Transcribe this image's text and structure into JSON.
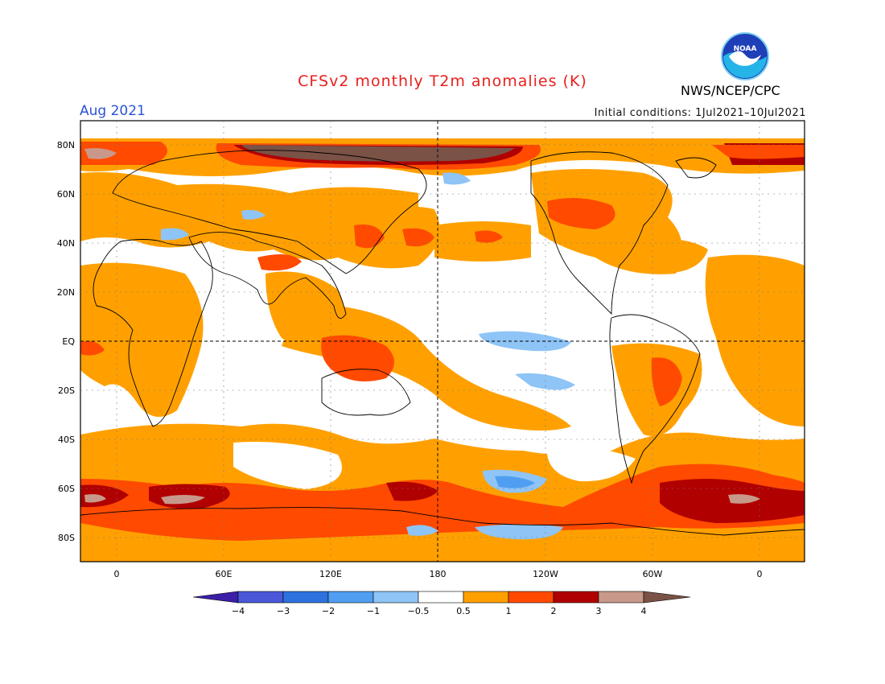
{
  "title": "CFSv2 monthly T2m anomalies (K)",
  "valid_month": "Aug 2021",
  "initial_conditions": "Initial conditions: 1Jul2021–10Jul2021",
  "agency": "NWS/NCEP/CPC",
  "logo_text": "NOAA",
  "axes": {
    "lat_ticks": [
      "80N",
      "60N",
      "40N",
      "20N",
      "EQ",
      "20S",
      "40S",
      "60S",
      "80S"
    ],
    "lon_ticks": [
      "0",
      "60E",
      "120E",
      "180",
      "120W",
      "60W",
      "0"
    ]
  },
  "colorbar": {
    "labels": [
      "−4",
      "−3",
      "−2",
      "−1",
      "−0.5",
      "0.5",
      "1",
      "2",
      "3",
      "4"
    ],
    "colors": [
      "#3b1fa7",
      "#4a58d8",
      "#2e72e0",
      "#4f9ef2",
      "#8ec4f6",
      "#ffffff",
      "#ffa000",
      "#ff4a00",
      "#b00000",
      "#c8998a",
      "#7a5246"
    ]
  },
  "map_colors": {
    "orange": "#ffa000",
    "red": "#ff4a00",
    "darkred": "#b00000",
    "brown": "#7a5246",
    "pinkbrown": "#c8998a",
    "lightblue": "#8ec4f6",
    "blue": "#4f9ef2"
  }
}
